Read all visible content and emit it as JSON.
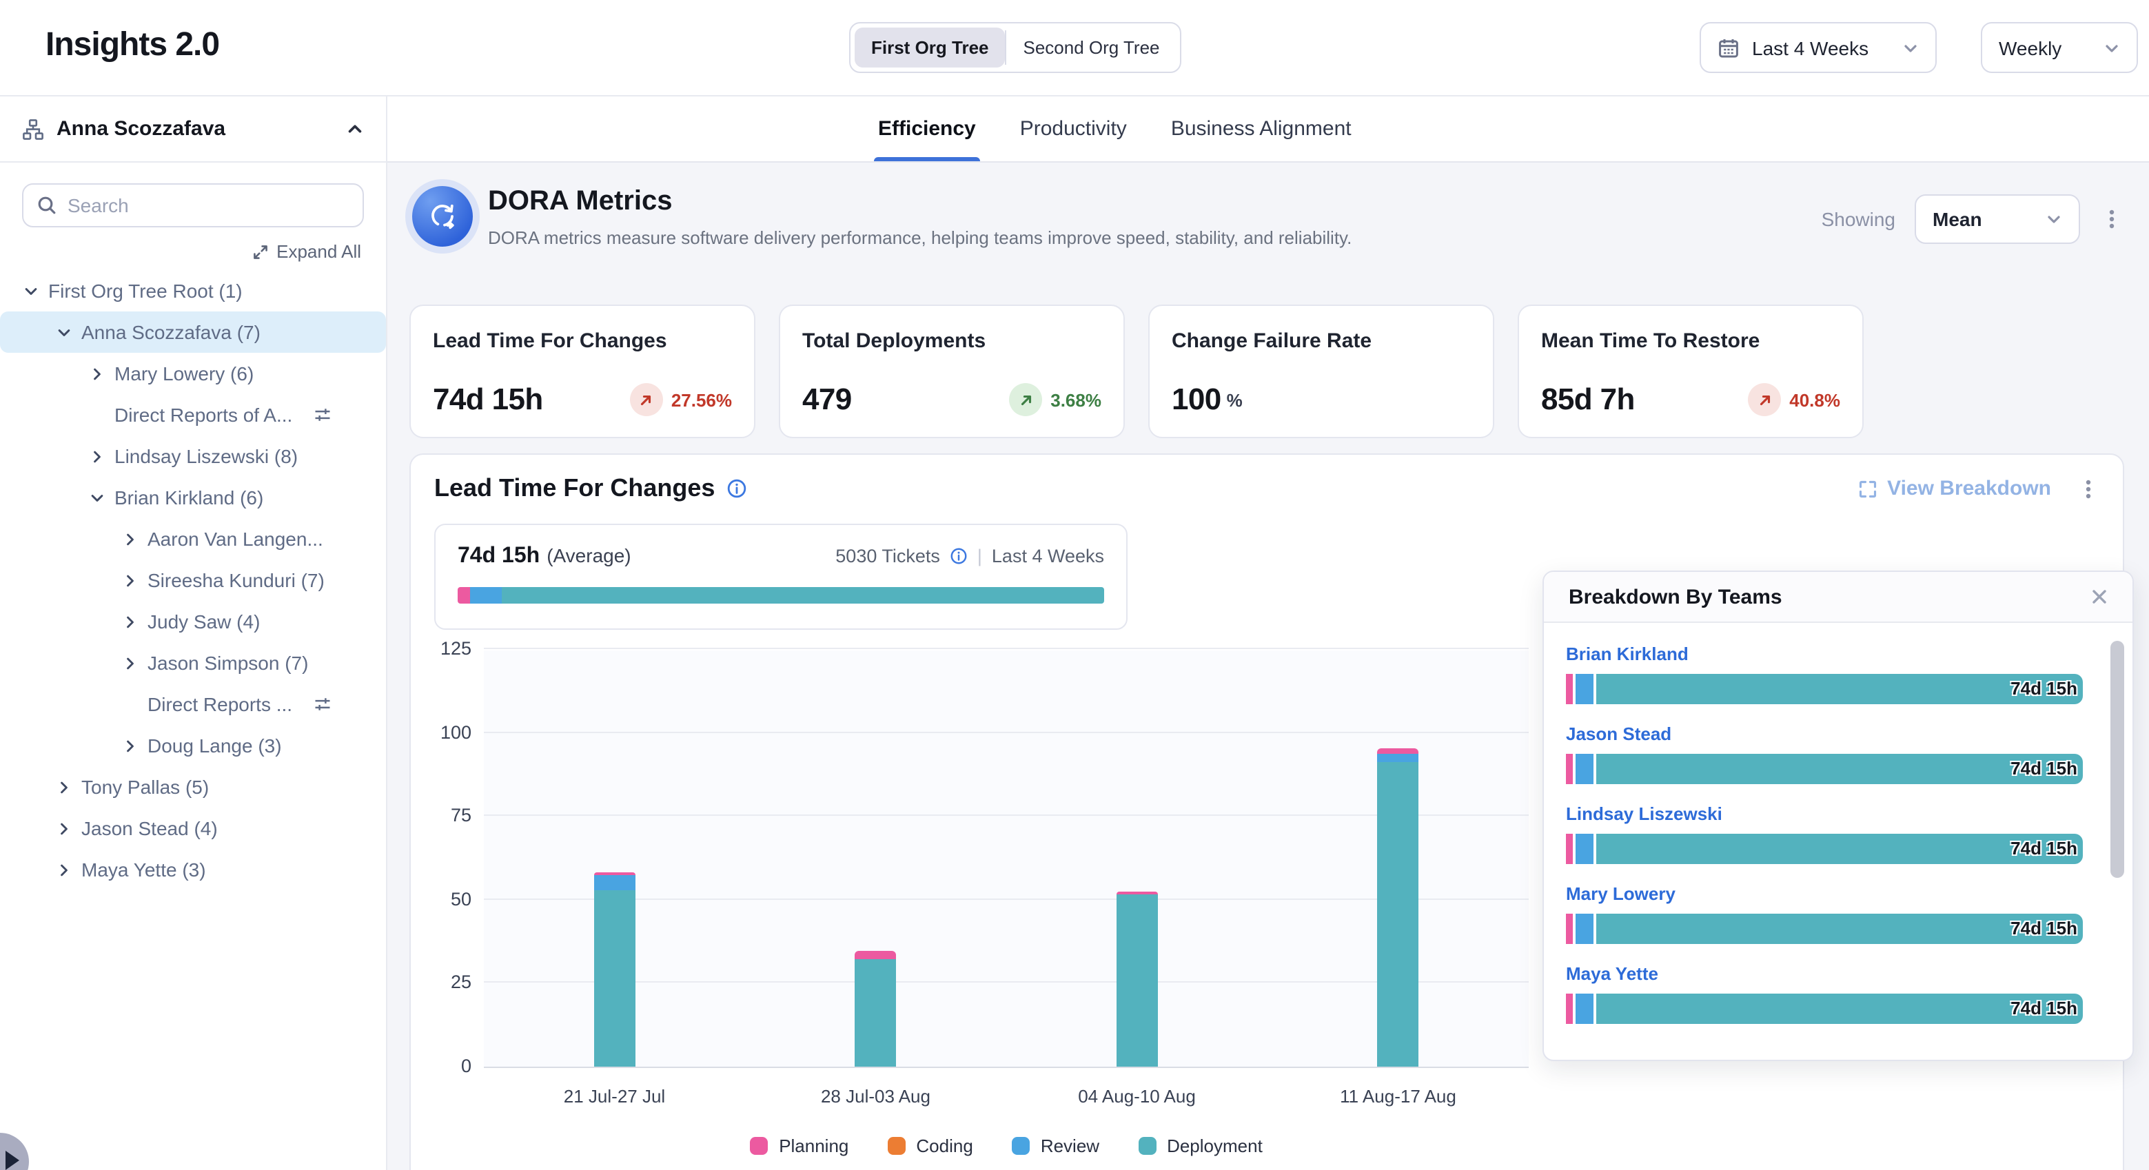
{
  "app": {
    "title": "Insights 2.0"
  },
  "header": {
    "org_tree_toggle": {
      "options": [
        "First Org Tree",
        "Second Org Tree"
      ],
      "selected": "First Org Tree"
    },
    "date_range": {
      "label": "Last 4 Weeks"
    },
    "granularity": {
      "label": "Weekly"
    }
  },
  "sidebar": {
    "owner": "Anna Scozzafava",
    "search_placeholder": "Search",
    "expand_all_label": "Expand All",
    "tree": [
      {
        "label": "First Org Tree Root (1)",
        "level": 0,
        "state": "expanded"
      },
      {
        "label": "Anna Scozzafava (7)",
        "level": 1,
        "state": "expanded",
        "selected": true
      },
      {
        "label": "Mary Lowery (6)",
        "level": 2,
        "state": "collapsed"
      },
      {
        "label": "Direct Reports of A...",
        "level": 2,
        "state": "none",
        "filter_icon": true
      },
      {
        "label": "Lindsay Liszewski (8)",
        "level": 2,
        "state": "collapsed"
      },
      {
        "label": "Brian Kirkland (6)",
        "level": 2,
        "state": "expanded"
      },
      {
        "label": "Aaron Van Langen...",
        "level": 3,
        "state": "collapsed"
      },
      {
        "label": "Sireesha Kunduri (7)",
        "level": 3,
        "state": "collapsed"
      },
      {
        "label": "Judy Saw (4)",
        "level": 3,
        "state": "collapsed"
      },
      {
        "label": "Jason Simpson (7)",
        "level": 3,
        "state": "collapsed"
      },
      {
        "label": "Direct Reports ...",
        "level": 3,
        "state": "none",
        "filter_icon": true
      },
      {
        "label": "Doug Lange (3)",
        "level": 3,
        "state": "collapsed"
      },
      {
        "label": "Tony Pallas (5)",
        "level": 1,
        "state": "collapsed"
      },
      {
        "label": "Jason Stead (4)",
        "level": 1,
        "state": "collapsed"
      },
      {
        "label": "Maya Yette (3)",
        "level": 1,
        "state": "collapsed"
      }
    ]
  },
  "tabs": [
    {
      "label": "Efficiency",
      "active": true
    },
    {
      "label": "Productivity",
      "active": false
    },
    {
      "label": "Business Alignment",
      "active": false
    }
  ],
  "dora": {
    "title": "DORA Metrics",
    "subtitle": "DORA metrics measure software delivery performance, helping teams improve speed, stability, and reliability.",
    "showing_label": "Showing",
    "showing_value": "Mean",
    "cards": [
      {
        "label": "Lead Time For Changes",
        "value": "74d 15h",
        "suffix": null,
        "delta": "27.56%",
        "trend": "up",
        "tone": "negative"
      },
      {
        "label": "Total Deployments",
        "value": "479",
        "suffix": null,
        "delta": "3.68%",
        "trend": "up",
        "tone": "positive"
      },
      {
        "label": "Change Failure Rate",
        "value": "100",
        "suffix": "%",
        "delta": null,
        "trend": null,
        "tone": null
      },
      {
        "label": "Mean Time To Restore",
        "value": "85d 7h",
        "suffix": null,
        "delta": "40.8%",
        "trend": "up",
        "tone": "negative"
      }
    ]
  },
  "lead_time": {
    "title": "Lead Time For Changes",
    "view_breakdown_label": "View Breakdown",
    "average": {
      "value": "74d 15h",
      "label": "(Average)",
      "tickets": "5030 Tickets",
      "period": "Last 4 Weeks",
      "segments": [
        {
          "name": "Planning",
          "color": "#ec5aa0",
          "pct": 2.0
        },
        {
          "name": "Review",
          "color": "#49a4e1",
          "pct": 4.8
        },
        {
          "name": "Deployment",
          "color": "#53b2be",
          "pct": 93.2
        }
      ]
    }
  },
  "chart_data": [
    {
      "id": "lead-time-weekly",
      "type": "bar",
      "stacked": true,
      "title": "Lead Time For Changes",
      "categories": [
        "21 Jul-27 Jul",
        "28 Jul-03 Aug",
        "04 Aug-10 Aug",
        "11 Aug-17 Aug"
      ],
      "series": [
        {
          "name": "Planning",
          "color": "#ec5aa0",
          "values": [
            0.7,
            2.5,
            0.8,
            1.8
          ]
        },
        {
          "name": "Coding",
          "color": "#ec7d33",
          "values": [
            0,
            0,
            0,
            0
          ]
        },
        {
          "name": "Review",
          "color": "#49a4e1",
          "values": [
            4.5,
            0,
            0,
            2.5
          ]
        },
        {
          "name": "Deployment",
          "color": "#53b2be",
          "values": [
            53,
            32,
            51.5,
            91
          ]
        }
      ],
      "ylim": [
        0,
        125
      ],
      "yticks": [
        0,
        25,
        50,
        75,
        100,
        125
      ],
      "unit": "days",
      "grid": true,
      "legend_position": "bottom"
    },
    {
      "id": "breakdown-by-teams",
      "type": "bar",
      "orientation": "horizontal",
      "title": "Breakdown By Teams",
      "categories": [
        "Brian Kirkland",
        "Jason Stead",
        "Lindsay Liszewski",
        "Mary Lowery",
        "Maya Yette"
      ],
      "values": [
        "74d 15h",
        "74d 15h",
        "74d 15h",
        "74d 15h",
        "74d 15h"
      ],
      "segments_pct": {
        "Planning": 1.3,
        "Review": 3.4,
        "Deployment": 95.3
      },
      "segment_colors": {
        "Planning": "#ec5aa0",
        "Review": "#49a4e1",
        "Deployment": "#53b2be"
      }
    }
  ],
  "colors": {
    "accent_blue": "#3d71d9",
    "link_blue": "#2d6bd8",
    "negative_red": "#c13829",
    "positive_green": "#3d7f44",
    "planning_pink": "#ec5aa0",
    "coding_orange": "#ec7d33",
    "review_blue": "#49a4e1",
    "deployment_teal": "#53b2be",
    "selected_tree_bg": "#ddeefa",
    "main_bg": "#f4f5f9"
  }
}
